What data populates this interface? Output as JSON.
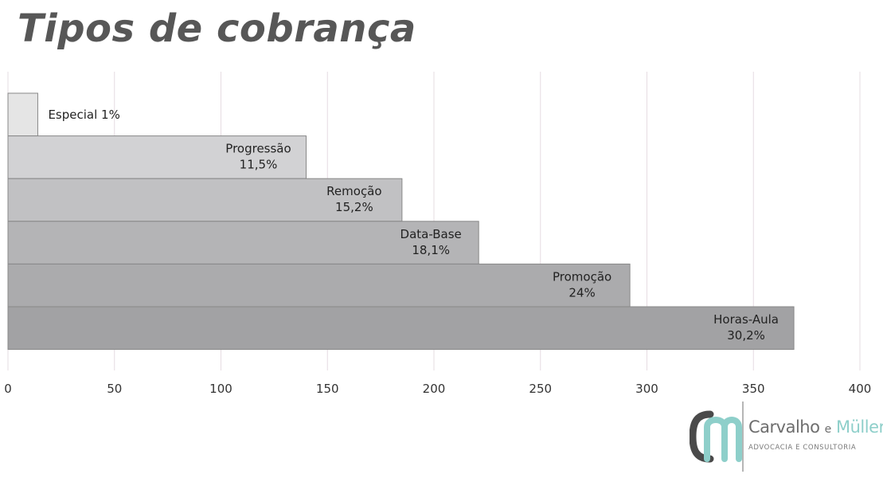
{
  "title": "Tipos de cobrança",
  "chart_data": {
    "type": "bar",
    "orientation": "horizontal",
    "title": "Tipos de cobrança",
    "categories": [
      "Especial",
      "Progressão",
      "Remoção",
      "Data-Base",
      "Promoção",
      "Horas-Aula"
    ],
    "values": [
      14,
      140,
      185,
      221,
      292,
      369
    ],
    "data_labels": [
      "1%",
      "11,5%",
      "15,2%",
      "18,1%",
      "24%",
      "30,2%"
    ],
    "xlim": [
      0,
      400
    ],
    "x_ticks": [
      "0",
      "50",
      "100",
      "150",
      "200",
      "250",
      "300",
      "350",
      "400"
    ],
    "grid": "vertical",
    "bar_colors": [
      "#e5e5e5",
      "#d2d2d4",
      "#c1c1c3",
      "#b4b4b6",
      "#ababad",
      "#a2a2a4"
    ],
    "xlabel": "",
    "ylabel": ""
  },
  "logo": {
    "monogram": "CM",
    "name_first": "Carvalho",
    "name_mid": "e",
    "name_last": "Müller",
    "tagline": "ADVOCACIA E CONSULTORIA",
    "colors": {
      "dark": "#4a4a4a",
      "accent": "#8ecfca"
    }
  }
}
